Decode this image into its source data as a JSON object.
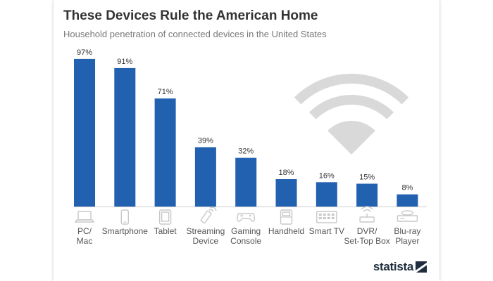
{
  "header": {
    "title": "These Devices Rule the American Home",
    "subtitle": "Household penetration of connected devices in the United States"
  },
  "brand": {
    "logo_text": "statista"
  },
  "colors": {
    "bar": "#2260b0",
    "icon": "#c8c8c8",
    "wifi": "#d9d9d9"
  },
  "chart_data": {
    "type": "bar",
    "categories": [
      [
        "PC/",
        "Mac"
      ],
      [
        "Smartphone"
      ],
      [
        "Tablet"
      ],
      [
        "Streaming",
        "Device"
      ],
      [
        "Gaming",
        "Console"
      ],
      [
        "Handheld"
      ],
      [
        "Smart TV"
      ],
      [
        "DVR/",
        "Set-Top Box"
      ],
      [
        "Blu-ray",
        "Player"
      ]
    ],
    "category_icons": [
      "laptop-icon",
      "smartphone-icon",
      "tablet-icon",
      "streaming-stick-icon",
      "gamepad-icon",
      "handheld-console-icon",
      "smart-tv-icon",
      "router-icon",
      "bluray-player-icon"
    ],
    "values": [
      97,
      91,
      71,
      39,
      32,
      18,
      16,
      15,
      8
    ],
    "value_labels": [
      "97%",
      "91%",
      "71%",
      "39%",
      "32%",
      "18%",
      "16%",
      "15%",
      "8%"
    ],
    "ylim": [
      0,
      100
    ],
    "grid": false,
    "legend": "none"
  }
}
